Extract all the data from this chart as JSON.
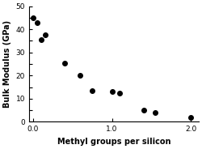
{
  "x": [
    0.0,
    0.05,
    0.1,
    0.15,
    0.4,
    0.6,
    0.75,
    1.0,
    1.1,
    1.4,
    1.55,
    2.0
  ],
  "y": [
    45,
    43,
    35.5,
    37.5,
    25.5,
    20,
    13.5,
    13,
    12.5,
    5,
    4,
    2
  ],
  "xlabel": "Methyl groups per silicon",
  "ylabel": "Bulk Modulus (GPa)",
  "xlim": [
    -0.05,
    2.1
  ],
  "ylim": [
    0,
    50
  ],
  "xticks": [
    0.0,
    1.0,
    2.0
  ],
  "yticks": [
    0,
    5,
    10,
    15,
    20,
    25,
    30,
    35,
    40,
    45,
    50
  ],
  "ytick_labels": [
    "0",
    "",
    "10",
    "",
    "20",
    "",
    "30",
    "",
    "40",
    "",
    "50"
  ],
  "marker": "o",
  "marker_color": "black",
  "marker_size": 4,
  "background_color": "#ffffff"
}
